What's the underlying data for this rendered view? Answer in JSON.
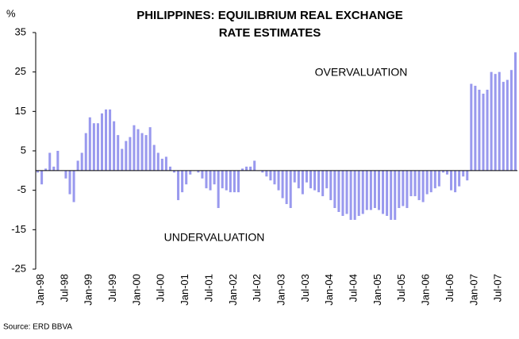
{
  "chart_data": {
    "type": "bar",
    "title": "PHILIPPINES: EQUILIBRIUM REAL EXCHANGE RATE ESTIMATES",
    "y_label": "%",
    "annotations": [
      "OVERVALUATION",
      "UNDERVALUATION"
    ],
    "source": "Source: ERD BBVA",
    "color": "#9999ee",
    "categories": [
      "Jan-98",
      null,
      null,
      null,
      null,
      null,
      "Jul-98",
      null,
      null,
      null,
      null,
      null,
      "Jan-99",
      null,
      null,
      null,
      null,
      null,
      "Jul-99",
      null,
      null,
      null,
      null,
      null,
      "Jan-00",
      null,
      null,
      null,
      null,
      null,
      "Jul-00",
      null,
      null,
      null,
      null,
      null,
      "Jan-01",
      null,
      null,
      null,
      null,
      null,
      "Jul-01",
      null,
      null,
      null,
      null,
      null,
      "Jan-02",
      null,
      null,
      null,
      null,
      null,
      "Jul-02",
      null,
      null,
      null,
      null,
      null,
      "Jan-03",
      null,
      null,
      null,
      null,
      null,
      "Jul-03",
      null,
      null,
      null,
      null,
      null,
      "Jan-04",
      null,
      null,
      null,
      null,
      null,
      "Jul-04",
      null,
      null,
      null,
      null,
      null,
      "Jan-05",
      null,
      null,
      null,
      null,
      null,
      "Jul-05",
      null,
      null,
      null,
      null,
      null,
      "Jan-06",
      null,
      null,
      null,
      null,
      null,
      "Jul-06",
      null,
      null,
      null,
      null,
      null,
      "Jan-07",
      null,
      null,
      null,
      null,
      null,
      "Jul-07",
      null,
      null,
      null,
      null,
      null
    ],
    "values": [
      -0.5,
      -3.5,
      0.5,
      4.5,
      1,
      5,
      0,
      -2,
      -6,
      -8,
      2.5,
      4.5,
      9.5,
      13.5,
      12,
      12,
      14.5,
      15.5,
      15.5,
      12.5,
      9,
      5.5,
      7.5,
      8.5,
      11.5,
      10.5,
      9.5,
      9,
      11,
      6.5,
      4.5,
      3,
      3.5,
      1,
      -0.5,
      -7.5,
      -5.5,
      -3.5,
      -1,
      0,
      -0.5,
      -2,
      -4.5,
      -5,
      -3.5,
      -9.5,
      -4.5,
      -5,
      -5.5,
      -5.5,
      -5.5,
      0.5,
      1,
      1,
      2.5,
      0,
      -0.5,
      -1.5,
      -2.5,
      -3.5,
      -5,
      -7,
      -8.5,
      -9.5,
      -3,
      -4.5,
      -6,
      -3,
      -4.5,
      -5,
      -5.5,
      -6.5,
      -4.5,
      -7.5,
      -9.5,
      -10.5,
      -11.5,
      -11,
      -12.5,
      -12.5,
      -11.5,
      -11,
      -10,
      -10,
      -9.5,
      -10,
      -11,
      -11.5,
      -12.5,
      -12.5,
      -9.5,
      -9,
      -9.5,
      -6.5,
      -6.5,
      -7.5,
      -8,
      -6,
      -5.5,
      -4.5,
      -4,
      -0.5,
      -1,
      -5,
      -5.5,
      -4,
      -1.5,
      -2.5,
      22,
      21.5,
      20.5,
      19.5,
      20.5,
      25,
      24.5,
      25,
      22.5,
      23,
      25.5,
      30
    ],
    "ylim": [
      -25,
      35
    ],
    "yticks": [
      -25,
      -15,
      -5,
      5,
      15,
      25,
      35
    ]
  }
}
